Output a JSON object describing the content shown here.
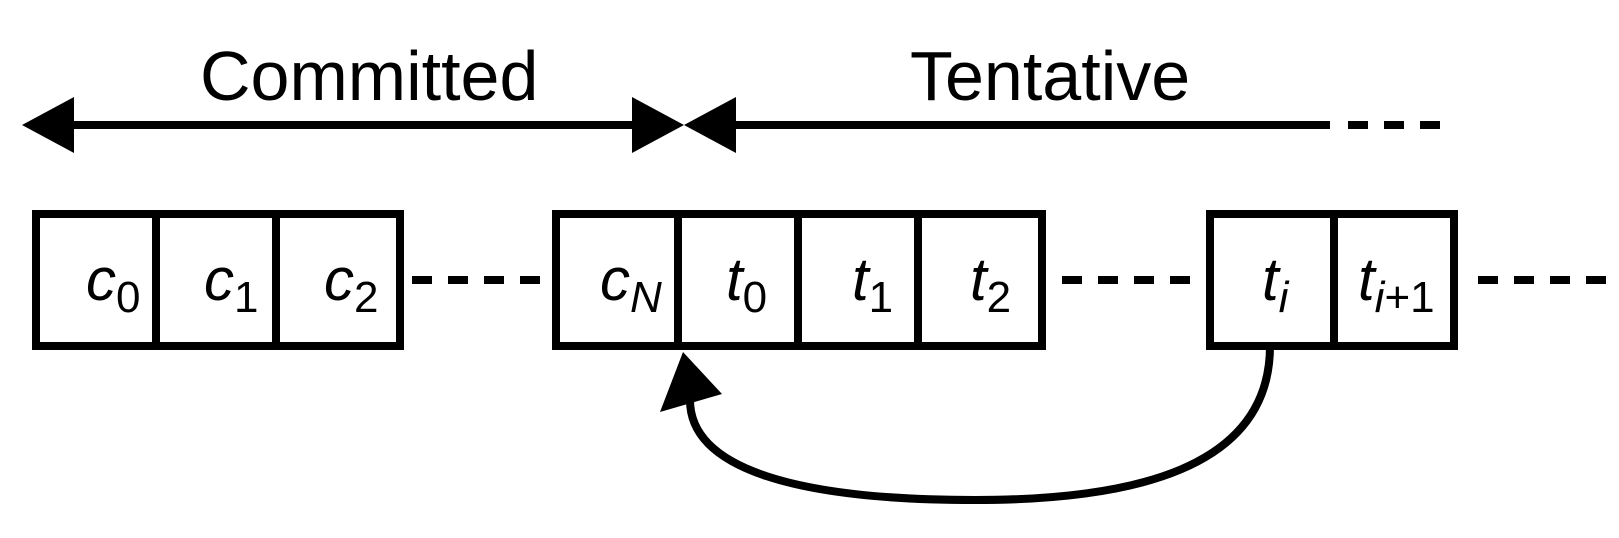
{
  "labels": {
    "committed": "Committed",
    "tentative": "Tentative"
  },
  "cells": [
    {
      "var": "c",
      "sub": "0"
    },
    {
      "var": "c",
      "sub": "1"
    },
    {
      "var": "c",
      "sub": "2"
    },
    {
      "var": "c",
      "sub": "N"
    },
    {
      "var": "t",
      "sub": "0"
    },
    {
      "var": "t",
      "sub": "1"
    },
    {
      "var": "t",
      "sub": "2"
    },
    {
      "var": "t",
      "sub": "i"
    },
    {
      "var": "t",
      "sub_italic": "i",
      "sub": "+1"
    }
  ]
}
